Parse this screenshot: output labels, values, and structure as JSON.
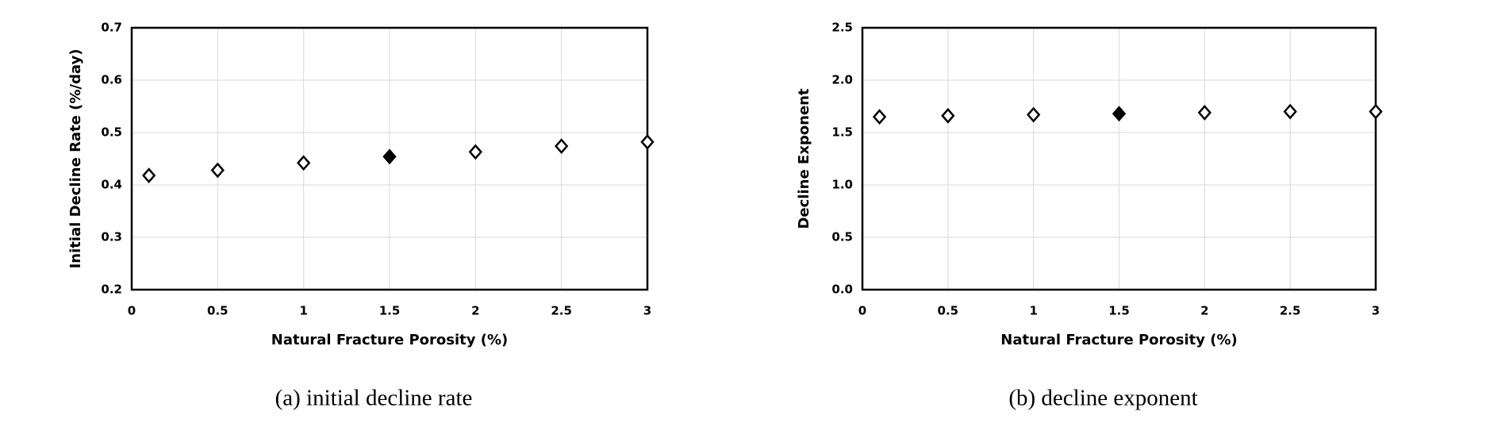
{
  "chart_data": [
    {
      "type": "scatter",
      "caption": "(a) initial decline rate",
      "xlabel": "Natural Fracture Porosity (%)",
      "ylabel": "Initial Decline Rate (%/day)",
      "x": [
        0.1,
        0.5,
        1,
        1.5,
        2,
        2.5,
        3
      ],
      "values": [
        0.418,
        0.428,
        0.442,
        0.454,
        0.463,
        0.474,
        0.482
      ],
      "marker_fill": [
        "#ffffff",
        "#ffffff",
        "#ffffff",
        "#000000",
        "#ffffff",
        "#ffffff",
        "#ffffff"
      ],
      "color": "#000000",
      "xlim": [
        0,
        3
      ],
      "xticks": [
        0,
        0.5,
        1,
        1.5,
        2,
        2.5,
        3
      ],
      "ylim": [
        0.2,
        0.7
      ],
      "yticks": [
        0.2,
        0.3,
        0.4,
        0.5,
        0.6,
        0.7
      ],
      "grid": true
    },
    {
      "type": "scatter",
      "caption": "(b) decline exponent",
      "xlabel": "Natural Fracture Porosity (%)",
      "ylabel": "Decline Exponent",
      "x": [
        0.1,
        0.5,
        1,
        1.5,
        2,
        2.5,
        3
      ],
      "values": [
        1.65,
        1.66,
        1.67,
        1.68,
        1.69,
        1.7,
        1.7
      ],
      "marker_fill": [
        "#ffffff",
        "#ffffff",
        "#ffffff",
        "#000000",
        "#ffffff",
        "#ffffff",
        "#ffffff"
      ],
      "color": "#000000",
      "xlim": [
        0,
        3
      ],
      "xticks": [
        0,
        0.5,
        1,
        1.5,
        2,
        2.5,
        3
      ],
      "ylim": [
        0,
        2.5
      ],
      "yticks": [
        {
          "value": 0,
          "label": "0.0"
        },
        0.5,
        {
          "value": 1,
          "label": "1.0"
        },
        1.5,
        {
          "value": 2,
          "label": "2.0"
        },
        2.5
      ],
      "grid": true
    }
  ]
}
